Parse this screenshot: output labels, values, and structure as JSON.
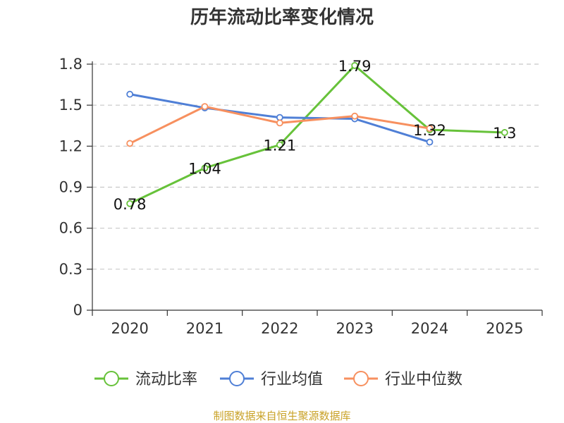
{
  "chart_data": {
    "type": "line",
    "title": "历年流动比率变化情况",
    "categories": [
      "2020",
      "2021",
      "2022",
      "2023",
      "2024",
      "2025"
    ],
    "y_ticks": [
      "0",
      "0.3",
      "0.6",
      "0.9",
      "1.2",
      "1.5",
      "1.8"
    ],
    "ylim": [
      0,
      1.8
    ],
    "grid": true,
    "legend_position": "bottom",
    "series": [
      {
        "name": "流动比率",
        "color": "#67c23a",
        "values": [
          0.78,
          1.04,
          1.21,
          1.79,
          1.32,
          1.3
        ],
        "labels": [
          "0.78",
          "1.04",
          "1.21",
          "1.79",
          "1.32",
          "1.3"
        ]
      },
      {
        "name": "行业均值",
        "color": "#4f7fd6",
        "values": [
          1.58,
          1.48,
          1.41,
          1.4,
          1.23,
          null
        ]
      },
      {
        "name": "行业中位数",
        "color": "#f7905f",
        "values": [
          1.22,
          1.49,
          1.37,
          1.42,
          1.33,
          null
        ]
      }
    ]
  },
  "source": {
    "text": "制图数据来自恒生聚源数据库",
    "color": "#c9a227"
  }
}
